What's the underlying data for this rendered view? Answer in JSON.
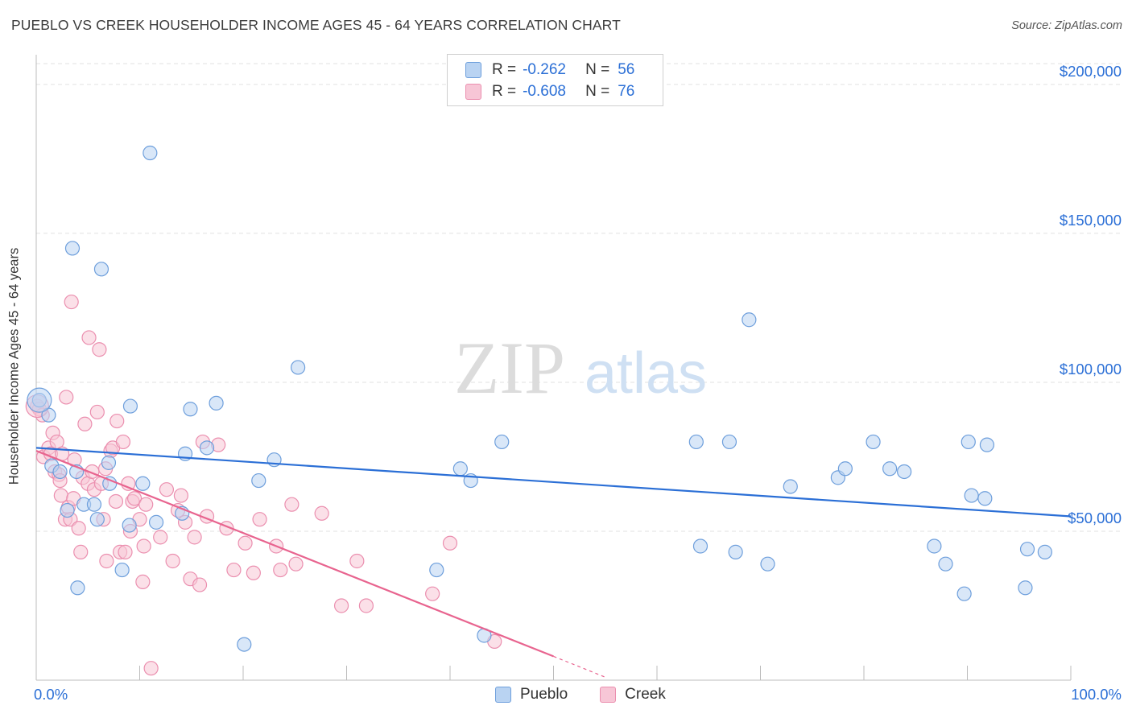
{
  "header": {
    "title": "PUEBLO VS CREEK HOUSEHOLDER INCOME AGES 45 - 64 YEARS CORRELATION CHART",
    "source": "Source: ZipAtlas.com"
  },
  "watermark": {
    "zip": "ZIP",
    "atlas": "atlas"
  },
  "legend": {
    "rows": [
      {
        "r_label": "R =",
        "r_value": "-0.262",
        "n_label": "N =",
        "n_value": "56"
      },
      {
        "r_label": "R =",
        "r_value": "-0.608",
        "n_label": "N =",
        "n_value": "76"
      }
    ]
  },
  "colors": {
    "pueblo_fill": "#b9d3f2",
    "pueblo_stroke": "#6e9fdc",
    "pueblo_line": "#2b6fd6",
    "creek_fill": "#f7c6d6",
    "creek_stroke": "#eb8faf",
    "creek_line": "#e8648f",
    "axis_text": "#2b6fd6",
    "grid": "#e1e1e1"
  },
  "chart_data": {
    "type": "scatter",
    "title": "PUEBLO VS CREEK HOUSEHOLDER INCOME AGES 45 - 64 YEARS CORRELATION CHART",
    "xlabel": "",
    "ylabel": "Householder Income Ages 45 - 64 years",
    "xlim": [
      0,
      100
    ],
    "ylim": [
      0,
      207000
    ],
    "x_tick_labels": [
      "0.0%",
      "100.0%"
    ],
    "y_ticks": [
      50000,
      100000,
      150000,
      200000
    ],
    "y_tick_labels": [
      "$50,000",
      "$100,000",
      "$150,000",
      "$200,000"
    ],
    "grid": true,
    "legend_position": "top-center",
    "series": [
      {
        "name": "Pueblo",
        "r": -0.262,
        "n": 56,
        "trend": {
          "x": [
            0,
            100
          ],
          "y": [
            78000,
            55000
          ]
        },
        "points": [
          [
            0.3,
            94000
          ],
          [
            1.2,
            89000
          ],
          [
            1.5,
            72000
          ],
          [
            2.3,
            70000
          ],
          [
            3.0,
            57000
          ],
          [
            3.9,
            70000
          ],
          [
            3.5,
            145000
          ],
          [
            4.0,
            31000
          ],
          [
            4.6,
            59000
          ],
          [
            5.6,
            59000
          ],
          [
            5.9,
            54000
          ],
          [
            6.3,
            138000
          ],
          [
            7.0,
            73000
          ],
          [
            7.1,
            66000
          ],
          [
            8.3,
            37000
          ],
          [
            9.0,
            52000
          ],
          [
            9.1,
            92000
          ],
          [
            10.3,
            66000
          ],
          [
            11.0,
            177000
          ],
          [
            11.6,
            53000
          ],
          [
            14.1,
            56000
          ],
          [
            14.4,
            76000
          ],
          [
            14.9,
            91000
          ],
          [
            16.5,
            78000
          ],
          [
            17.4,
            93000
          ],
          [
            20.1,
            12000
          ],
          [
            21.5,
            67000
          ],
          [
            23.0,
            74000
          ],
          [
            25.3,
            105000
          ],
          [
            38.7,
            37000
          ],
          [
            41.0,
            71000
          ],
          [
            42.0,
            67000
          ],
          [
            43.3,
            15000
          ],
          [
            45.0,
            80000
          ],
          [
            63.8,
            80000
          ],
          [
            64.2,
            45000
          ],
          [
            67.0,
            80000
          ],
          [
            67.6,
            43000
          ],
          [
            68.9,
            121000
          ],
          [
            70.7,
            39000
          ],
          [
            72.9,
            65000
          ],
          [
            77.5,
            68000
          ],
          [
            78.2,
            71000
          ],
          [
            80.9,
            80000
          ],
          [
            82.5,
            71000
          ],
          [
            83.9,
            70000
          ],
          [
            86.8,
            45000
          ],
          [
            87.9,
            39000
          ],
          [
            89.7,
            29000
          ],
          [
            90.1,
            80000
          ],
          [
            90.4,
            62000
          ],
          [
            91.7,
            61000
          ],
          [
            91.9,
            79000
          ],
          [
            95.6,
            31000
          ],
          [
            95.8,
            44000
          ],
          [
            97.5,
            43000
          ]
        ]
      },
      {
        "name": "Creek",
        "r": -0.608,
        "n": 76,
        "trend": {
          "x": [
            0,
            50
          ],
          "y": [
            77000,
            8000
          ]
        },
        "trend_dashed": {
          "x": [
            50,
            55
          ],
          "y": [
            8000,
            1000
          ]
        },
        "points": [
          [
            0.1,
            92000
          ],
          [
            0.3,
            91000
          ],
          [
            0.6,
            89000
          ],
          [
            0.7,
            75000
          ],
          [
            1.2,
            78000
          ],
          [
            1.4,
            76000
          ],
          [
            1.6,
            83000
          ],
          [
            1.8,
            70000
          ],
          [
            2.0,
            80000
          ],
          [
            2.2,
            69000
          ],
          [
            2.3,
            67000
          ],
          [
            2.4,
            62000
          ],
          [
            2.5,
            76000
          ],
          [
            2.8,
            54000
          ],
          [
            2.9,
            95000
          ],
          [
            3.1,
            58000
          ],
          [
            3.3,
            54000
          ],
          [
            3.4,
            127000
          ],
          [
            3.6,
            61000
          ],
          [
            3.7,
            74000
          ],
          [
            4.1,
            51000
          ],
          [
            4.3,
            43000
          ],
          [
            4.5,
            68000
          ],
          [
            4.7,
            86000
          ],
          [
            5.0,
            66000
          ],
          [
            5.1,
            115000
          ],
          [
            5.4,
            70000
          ],
          [
            5.6,
            64000
          ],
          [
            5.9,
            90000
          ],
          [
            6.1,
            111000
          ],
          [
            6.3,
            66000
          ],
          [
            6.5,
            54000
          ],
          [
            6.7,
            71000
          ],
          [
            6.8,
            40000
          ],
          [
            7.2,
            77000
          ],
          [
            7.4,
            78000
          ],
          [
            7.7,
            60000
          ],
          [
            7.8,
            87000
          ],
          [
            8.1,
            43000
          ],
          [
            8.4,
            80000
          ],
          [
            8.6,
            43000
          ],
          [
            8.9,
            66000
          ],
          [
            9.1,
            50000
          ],
          [
            9.3,
            60000
          ],
          [
            9.5,
            61000
          ],
          [
            10.0,
            54000
          ],
          [
            10.3,
            33000
          ],
          [
            10.4,
            45000
          ],
          [
            10.6,
            59000
          ],
          [
            11.1,
            4000
          ],
          [
            12.0,
            48000
          ],
          [
            12.6,
            64000
          ],
          [
            13.2,
            40000
          ],
          [
            13.7,
            57000
          ],
          [
            14.0,
            62000
          ],
          [
            14.4,
            53000
          ],
          [
            14.9,
            34000
          ],
          [
            15.3,
            48000
          ],
          [
            15.8,
            32000
          ],
          [
            16.1,
            80000
          ],
          [
            16.5,
            55000
          ],
          [
            17.6,
            79000
          ],
          [
            18.4,
            51000
          ],
          [
            19.1,
            37000
          ],
          [
            20.2,
            46000
          ],
          [
            21.0,
            36000
          ],
          [
            21.6,
            54000
          ],
          [
            23.2,
            45000
          ],
          [
            23.6,
            37000
          ],
          [
            24.7,
            59000
          ],
          [
            25.1,
            39000
          ],
          [
            27.6,
            56000
          ],
          [
            29.5,
            25000
          ],
          [
            31.0,
            40000
          ],
          [
            31.9,
            25000
          ],
          [
            38.3,
            29000
          ],
          [
            40.0,
            46000
          ],
          [
            44.3,
            13000
          ]
        ]
      }
    ]
  }
}
